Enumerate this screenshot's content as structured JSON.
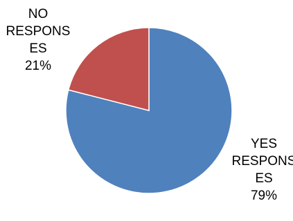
{
  "chart_data": {
    "type": "pie",
    "title": "",
    "slices": [
      {
        "category": "YES RESPONSES",
        "label_lines": [
          "YES",
          "RESPONS",
          "ES",
          "79%"
        ],
        "percent": 79,
        "color": "#4F81BD"
      },
      {
        "category": "NO RESPONSES",
        "label_lines": [
          "NO",
          "RESPONS",
          "ES",
          "21%"
        ],
        "percent": 21,
        "color": "#C0504D"
      }
    ],
    "start_angle_deg": 0,
    "direction": "clockwise",
    "legend": "none"
  }
}
